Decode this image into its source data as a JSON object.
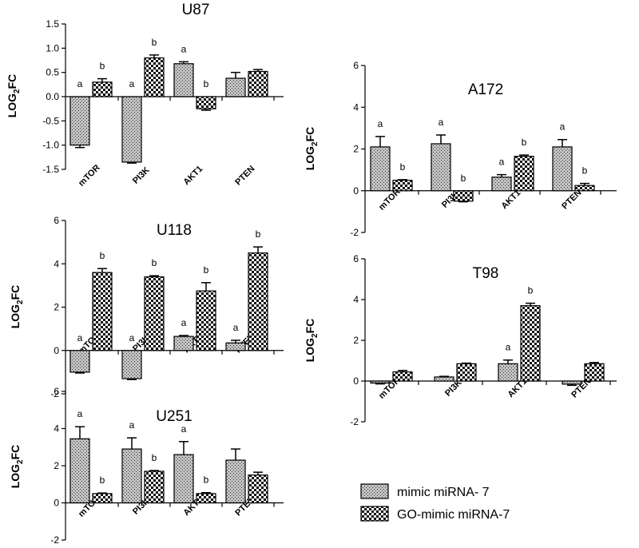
{
  "legend": {
    "items": [
      {
        "label": "mimic miRNA- 7",
        "pattern": "pat-fine"
      },
      {
        "label": "GO-mimic miRNA-7",
        "pattern": "pat-check"
      }
    ]
  },
  "chart_data": [
    {
      "type": "bar",
      "title": "U87",
      "ylabel_main": "LOG",
      "ylabel_sub": "2",
      "ylabel_end": "FC",
      "categories": [
        "mTOR",
        "PI3K",
        "AKT1",
        "PTEN"
      ],
      "ylim": [
        -1.5,
        1.5
      ],
      "yticks": [
        -1.5,
        -1.0,
        -0.5,
        0.0,
        0.5,
        1.0,
        1.5
      ],
      "tick_labels": [
        "-1.5",
        "-1.0",
        "-0.5",
        "0.0",
        "0.5",
        "1.0",
        "1.5"
      ],
      "series": [
        {
          "name": "mimic miRNA- 7",
          "values": [
            -1.0,
            -1.35,
            0.68,
            0.38
          ],
          "errors": [
            0.05,
            0.02,
            0.04,
            0.12
          ],
          "labels": [
            "a",
            "a",
            "a",
            ""
          ]
        },
        {
          "name": "GO-mimic miRNA-7",
          "values": [
            0.3,
            0.8,
            -0.25,
            0.52
          ],
          "errors": [
            0.07,
            0.06,
            0.03,
            0.04
          ],
          "labels": [
            "b",
            "b",
            "b",
            ""
          ]
        }
      ]
    },
    {
      "type": "bar",
      "title": "U118",
      "ylabel_main": "LOG",
      "ylabel_sub": "2",
      "ylabel_end": "FC",
      "categories": [
        "mTOR",
        "PI3K",
        "AKT1",
        "PTEN"
      ],
      "ylim": [
        -2,
        6
      ],
      "yticks": [
        -2,
        0,
        2,
        4,
        6
      ],
      "tick_labels": [
        "-2",
        "0",
        "2",
        "4",
        "6"
      ],
      "series": [
        {
          "name": "mimic miRNA- 7",
          "values": [
            -1.0,
            -1.3,
            0.65,
            0.35
          ],
          "errors": [
            0.04,
            0.04,
            0.04,
            0.12
          ],
          "labels": [
            "a",
            "a",
            "a",
            "a"
          ]
        },
        {
          "name": "GO-mimic miRNA-7",
          "values": [
            3.6,
            3.4,
            2.75,
            4.5
          ],
          "errors": [
            0.18,
            0.05,
            0.38,
            0.28
          ],
          "labels": [
            "b",
            "b",
            "b",
            "b"
          ]
        }
      ]
    },
    {
      "type": "bar",
      "title": "U251",
      "ylabel_main": "LOG",
      "ylabel_sub": "2",
      "ylabel_end": "FC",
      "categories": [
        "mTOR",
        "PI3K",
        "AKT1",
        "PTEN"
      ],
      "ylim": [
        -2,
        6
      ],
      "yticks": [
        -2,
        0,
        2,
        4,
        6
      ],
      "tick_labels": [
        "-2",
        "0",
        "2",
        "4",
        "6"
      ],
      "series": [
        {
          "name": "mimic miRNA- 7",
          "values": [
            3.45,
            2.9,
            2.6,
            2.3
          ],
          "errors": [
            0.65,
            0.6,
            0.7,
            0.6
          ],
          "labels": [
            "a",
            "a",
            "a",
            ""
          ]
        },
        {
          "name": "GO-mimic miRNA-7",
          "values": [
            0.5,
            1.7,
            0.5,
            1.5
          ],
          "errors": [
            0.03,
            0.04,
            0.05,
            0.15
          ],
          "labels": [
            "b",
            "b",
            "b",
            ""
          ]
        }
      ]
    },
    {
      "type": "bar",
      "title": "A172",
      "ylabel_main": "LOG",
      "ylabel_sub": "2",
      "ylabel_end": "FC",
      "categories": [
        "mTOR",
        "PI3K",
        "AKT1",
        "PTEN"
      ],
      "ylim": [
        -2,
        6
      ],
      "yticks": [
        -2,
        0,
        2,
        4,
        6
      ],
      "tick_labels": [
        "-2",
        "0",
        "2",
        "4",
        "6"
      ],
      "series": [
        {
          "name": "mimic miRNA- 7",
          "values": [
            2.1,
            2.25,
            0.65,
            2.1
          ],
          "errors": [
            0.5,
            0.42,
            0.12,
            0.35
          ],
          "labels": [
            "a",
            "a",
            "a",
            "a"
          ]
        },
        {
          "name": "GO-mimic miRNA-7",
          "values": [
            0.5,
            -0.5,
            1.65,
            0.25
          ],
          "errors": [
            0.03,
            0.03,
            0.06,
            0.1
          ],
          "labels": [
            "b",
            "b",
            "b",
            "b"
          ]
        }
      ]
    },
    {
      "type": "bar",
      "title": "T98",
      "ylabel_main": "LOG",
      "ylabel_sub": "2",
      "ylabel_end": "FC",
      "categories": [
        "mTOR",
        "PI3K",
        "AKT1",
        "PTEN"
      ],
      "ylim": [
        -2,
        6
      ],
      "yticks": [
        -2,
        0,
        2,
        4,
        6
      ],
      "tick_labels": [
        "-2",
        "0",
        "2",
        "4",
        "6"
      ],
      "series": [
        {
          "name": "mimic miRNA- 7",
          "values": [
            -0.1,
            0.2,
            0.85,
            -0.15
          ],
          "errors": [
            0.04,
            0.03,
            0.18,
            0.06
          ],
          "labels": [
            "",
            "",
            "a",
            ""
          ]
        },
        {
          "name": "GO-mimic miRNA-7",
          "values": [
            0.45,
            0.85,
            3.7,
            0.85
          ],
          "errors": [
            0.07,
            0.03,
            0.12,
            0.06
          ],
          "labels": [
            "",
            "",
            "b",
            ""
          ]
        }
      ]
    }
  ]
}
